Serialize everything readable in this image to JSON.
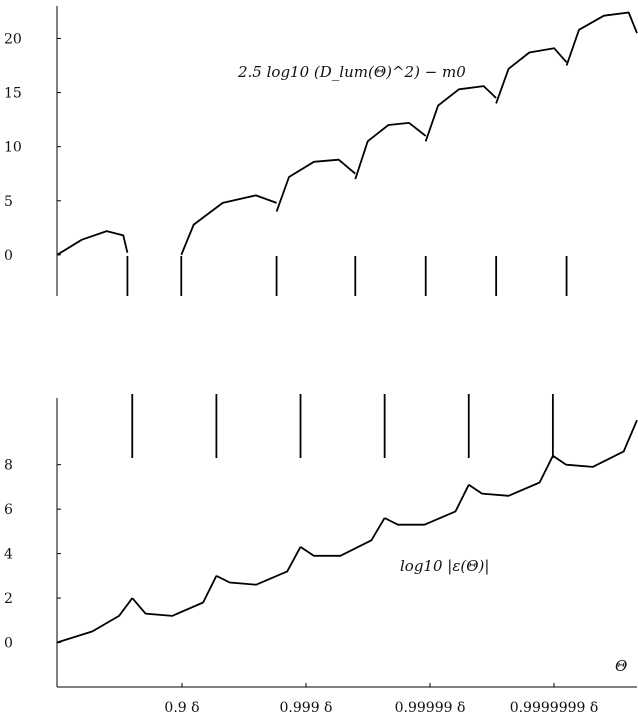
{
  "chart_data": [
    {
      "type": "line",
      "title": "",
      "xlabel": "",
      "ylabel": "",
      "annotation": "2.5 log10 (D_lum(Θ)^2) − m0",
      "ylim": [
        -3.8,
        23
      ],
      "yticks": [
        0,
        5,
        10,
        15,
        20
      ],
      "ytick_labels": [
        "0",
        "5",
        "10",
        "15",
        "20"
      ],
      "segments": [
        {
          "x": [
            0.0,
            0.06,
            0.12,
            0.16,
            0.17
          ],
          "y": [
            0.0,
            1.4,
            2.2,
            1.8,
            0.2
          ]
        },
        {
          "x": [
            0.3,
            0.33,
            0.4,
            0.48,
            0.53
          ],
          "y": [
            0.0,
            2.8,
            4.8,
            5.5,
            4.8
          ]
        },
        {
          "x": [
            0.53,
            0.56,
            0.62,
            0.68,
            0.72
          ],
          "y": [
            4.0,
            7.2,
            8.6,
            8.8,
            7.5
          ]
        },
        {
          "x": [
            0.72,
            0.75,
            0.8,
            0.85,
            0.89
          ],
          "y": [
            7.0,
            10.5,
            12.0,
            12.2,
            11.0
          ]
        },
        {
          "x": [
            0.89,
            0.92,
            0.97,
            1.03,
            1.06
          ],
          "y": [
            10.5,
            13.8,
            15.3,
            15.6,
            14.5
          ]
        },
        {
          "x": [
            1.06,
            1.09,
            1.14,
            1.2,
            1.23
          ],
          "y": [
            14.0,
            17.2,
            18.7,
            19.1,
            17.8
          ]
        },
        {
          "x": [
            1.23,
            1.26,
            1.32,
            1.38,
            1.4
          ],
          "y": [
            17.5,
            20.8,
            22.1,
            22.4,
            20.5
          ]
        }
      ],
      "dips_x": [
        0.17,
        0.3,
        0.53,
        0.72,
        0.89,
        1.06,
        1.23
      ]
    },
    {
      "type": "line",
      "title": "",
      "xlabel": "Θ",
      "ylabel": "",
      "annotation": "log10 |ε(Θ)|",
      "ylim": [
        -2,
        11
      ],
      "yticks": [
        0,
        2,
        4,
        6,
        8
      ],
      "ytick_labels": [
        "0",
        "2",
        "4",
        "6",
        "8"
      ],
      "xticks": [
        0.9,
        0.999,
        0.99999,
        0.9999999
      ],
      "xtick_labels": [
        "0.9 δ",
        "0.999 δ",
        "0.99999 δ",
        "0.9999999 δ"
      ],
      "segments": [
        {
          "x": [
            0.0,
            0.08,
            0.14,
            0.17
          ],
          "y": [
            0.0,
            0.5,
            1.2,
            2.0
          ]
        },
        {
          "x": [
            0.17,
            0.2,
            0.26,
            0.33,
            0.36
          ],
          "y": [
            2.0,
            1.3,
            1.2,
            1.8,
            3.0
          ]
        },
        {
          "x": [
            0.36,
            0.39,
            0.45,
            0.52,
            0.55
          ],
          "y": [
            3.0,
            2.7,
            2.6,
            3.2,
            4.3
          ]
        },
        {
          "x": [
            0.55,
            0.58,
            0.64,
            0.71,
            0.74
          ],
          "y": [
            4.3,
            3.9,
            3.9,
            4.6,
            5.6
          ]
        },
        {
          "x": [
            0.74,
            0.77,
            0.83,
            0.9,
            0.93
          ],
          "y": [
            5.6,
            5.3,
            5.3,
            5.9,
            7.1
          ]
        },
        {
          "x": [
            0.93,
            0.96,
            1.02,
            1.09,
            1.12
          ],
          "y": [
            7.1,
            6.7,
            6.6,
            7.2,
            8.4
          ]
        },
        {
          "x": [
            1.12,
            1.15,
            1.21,
            1.28,
            1.31
          ],
          "y": [
            8.4,
            8.0,
            7.9,
            8.6,
            10.0
          ]
        }
      ],
      "spikes_x": [
        0.17,
        0.36,
        0.55,
        0.74,
        0.93,
        1.12
      ]
    }
  ]
}
